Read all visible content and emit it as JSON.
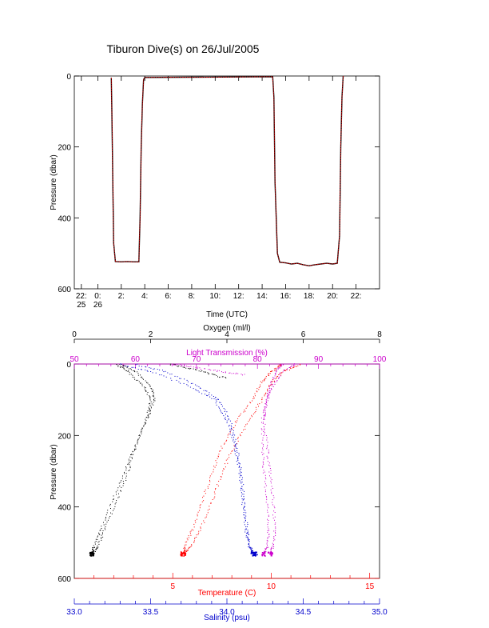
{
  "title": "Tiburon Dive(s) on 26/Jul/2005",
  "chart_data": [
    {
      "type": "line",
      "name": "pressure-vs-time",
      "xlabel": "Time (UTC)",
      "ylabel": "Pressure (dbar)",
      "xlim": [
        -2,
        24
      ],
      "ylim": [
        600,
        0
      ],
      "yticks": [
        0,
        200,
        400,
        600
      ],
      "xticks": [
        {
          "x": -1.4,
          "label": "22:",
          "sub": "25"
        },
        {
          "x": 0.0,
          "label": "0:",
          "sub": "26"
        },
        {
          "x": 2,
          "label": "2:"
        },
        {
          "x": 4,
          "label": "4:"
        },
        {
          "x": 6,
          "label": "6:"
        },
        {
          "x": 8,
          "label": "8:"
        },
        {
          "x": 10,
          "label": "10:"
        },
        {
          "x": 12,
          "label": "12:"
        },
        {
          "x": 14,
          "label": "14:"
        },
        {
          "x": 16,
          "label": "16:"
        },
        {
          "x": 18,
          "label": "18:"
        },
        {
          "x": 20,
          "label": "20:"
        },
        {
          "x": 22,
          "label": "22:"
        }
      ],
      "series": [
        {
          "color": "#000000",
          "x": [
            1.15,
            1.2,
            1.35,
            1.5,
            2.0,
            2.5,
            3.0,
            3.5,
            3.6,
            3.7,
            3.8,
            3.9,
            4.0,
            14.9,
            15.0,
            15.1,
            15.3,
            15.5,
            16.0,
            16.5,
            17.0,
            17.5,
            18.0,
            18.5,
            19.0,
            19.5,
            20.0,
            20.4,
            20.6,
            20.7,
            20.8,
            20.9
          ],
          "y": [
            5,
            100,
            470,
            523,
            524,
            523,
            524,
            524,
            400,
            200,
            80,
            10,
            4,
            2,
            60,
            300,
            500,
            525,
            527,
            530,
            528,
            532,
            535,
            532,
            530,
            528,
            530,
            528,
            450,
            200,
            60,
            0
          ]
        },
        {
          "color": "#ff0000",
          "x": [
            1.15,
            1.2,
            1.35,
            1.5,
            2.0,
            2.5,
            3.0,
            3.5,
            3.6,
            3.7,
            3.8,
            3.9,
            4.0,
            14.9,
            15.0,
            15.1,
            15.3,
            15.5,
            16.0,
            16.5,
            17.0,
            17.5,
            18.0,
            18.5,
            19.0,
            19.5,
            20.0,
            20.4,
            20.6,
            20.7,
            20.8,
            20.9
          ],
          "y": [
            5,
            100,
            470,
            523,
            524,
            523,
            524,
            524,
            400,
            200,
            80,
            10,
            4,
            2,
            60,
            300,
            500,
            525,
            527,
            530,
            528,
            532,
            535,
            532,
            530,
            528,
            530,
            528,
            450,
            200,
            60,
            0
          ]
        }
      ]
    },
    {
      "type": "scatter",
      "name": "profiles",
      "ylabel": "Pressure (dbar)",
      "ylim": [
        600,
        0
      ],
      "yticks": [
        0,
        200,
        400,
        600
      ],
      "axes": {
        "oxygen": {
          "label": "Oxygen (ml/l)",
          "color": "#000000",
          "range": [
            0,
            8
          ],
          "ticks": [
            0,
            2,
            4,
            6,
            8
          ]
        },
        "light": {
          "label": "Light Transmission (%)",
          "color": "#cc00cc",
          "range": [
            50,
            100
          ],
          "ticks": [
            50,
            60,
            70,
            80,
            90,
            100
          ]
        },
        "temperature": {
          "label": "Temperature (C)",
          "color": "#ff0000",
          "range": [
            0,
            15.5
          ],
          "ticks": [
            5,
            10,
            15
          ]
        },
        "salinity": {
          "label": "Salinity (psu)",
          "color": "#0000cc",
          "range": [
            33.0,
            35.0
          ],
          "ticks": [
            "33.0",
            "33.5",
            "34.0",
            "34.5",
            "35.0"
          ]
        }
      },
      "series": [
        {
          "axis": "oxygen",
          "color": "#000000",
          "profiles": [
            {
              "x": [
                1.1,
                1.4,
                1.8,
                2.0,
                1.9,
                1.6,
                1.3,
                1.0,
                0.7,
                0.5,
                0.45
              ],
              "y": [
                0,
                20,
                60,
                100,
                150,
                230,
                300,
                380,
                460,
                510,
                530
              ]
            },
            {
              "x": [
                1.2,
                1.6,
                2.0,
                2.1,
                1.9,
                1.6,
                1.4,
                1.1,
                0.8,
                0.6,
                0.45
              ],
              "y": [
                0,
                20,
                60,
                100,
                150,
                230,
                300,
                380,
                460,
                510,
                530
              ]
            },
            {
              "x": [
                2.5,
                3.0,
                3.5,
                4.0
              ],
              "y": [
                0,
                10,
                25,
                40
              ]
            }
          ]
        },
        {
          "axis": "light",
          "color": "#cc00cc",
          "profiles": [
            {
              "x": [
                84,
                83,
                82,
                81.5,
                81,
                81.5,
                82,
                82.5,
                82.8,
                82.5,
                82
              ],
              "y": [
                0,
                20,
                60,
                100,
                150,
                230,
                300,
                380,
                460,
                510,
                530
              ]
            },
            {
              "x": [
                86,
                84,
                82.5,
                81.5,
                80.8,
                80.8,
                81,
                81.5,
                81.8,
                81.5,
                81
              ],
              "y": [
                0,
                20,
                60,
                100,
                150,
                230,
                300,
                380,
                460,
                510,
                530
              ]
            },
            {
              "x": [
                66,
                70,
                74,
                78
              ],
              "y": [
                0,
                10,
                20,
                30
              ]
            }
          ]
        },
        {
          "axis": "temperature",
          "color": "#ff0000",
          "profiles": [
            {
              "x": [
                10.5,
                10.0,
                9.5,
                9.0,
                8.2,
                7.5,
                7.0,
                6.5,
                6.0,
                5.6,
                5.5
              ],
              "y": [
                0,
                20,
                50,
                100,
                160,
                230,
                300,
                380,
                460,
                510,
                530
              ]
            },
            {
              "x": [
                11.5,
                10.6,
                10.0,
                9.5,
                8.8,
                8.1,
                7.5,
                7.0,
                6.4,
                5.9,
                5.5
              ],
              "y": [
                0,
                20,
                50,
                100,
                160,
                230,
                300,
                380,
                460,
                510,
                530
              ]
            }
          ]
        },
        {
          "axis": "salinity",
          "color": "#0000cc",
          "profiles": [
            {
              "x": [
                33.4,
                33.6,
                33.8,
                33.95,
                34.02,
                34.06,
                34.09,
                34.11,
                34.13,
                34.15,
                34.17
              ],
              "y": [
                0,
                20,
                60,
                100,
                160,
                230,
                300,
                380,
                460,
                510,
                530
              ]
            },
            {
              "x": [
                33.3,
                33.5,
                33.75,
                33.92,
                34.0,
                34.05,
                34.08,
                34.1,
                34.12,
                34.14,
                34.18
              ],
              "y": [
                0,
                20,
                60,
                100,
                160,
                230,
                300,
                380,
                460,
                510,
                530
              ]
            }
          ]
        }
      ]
    }
  ]
}
